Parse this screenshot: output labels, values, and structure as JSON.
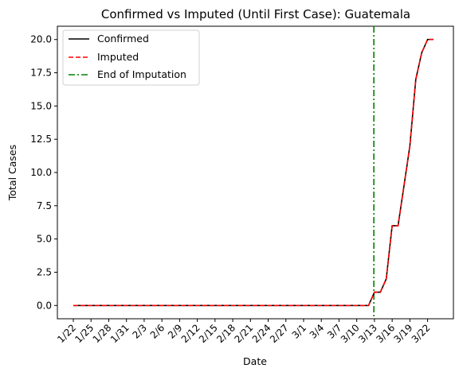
{
  "chart_data": {
    "type": "line",
    "title": "Confirmed vs Imputed (Until First Case): Guatemala",
    "xlabel": "Date",
    "ylabel": "Total Cases",
    "categories": [
      "1/22",
      "1/23",
      "1/24",
      "1/25",
      "1/26",
      "1/27",
      "1/28",
      "1/29",
      "1/30",
      "1/31",
      "2/1",
      "2/2",
      "2/3",
      "2/4",
      "2/5",
      "2/6",
      "2/7",
      "2/8",
      "2/9",
      "2/10",
      "2/11",
      "2/12",
      "2/13",
      "2/14",
      "2/15",
      "2/16",
      "2/17",
      "2/18",
      "2/19",
      "2/20",
      "2/21",
      "2/22",
      "2/23",
      "2/24",
      "2/25",
      "2/26",
      "2/27",
      "2/28",
      "2/29",
      "3/1",
      "3/2",
      "3/3",
      "3/4",
      "3/5",
      "3/6",
      "3/7",
      "3/8",
      "3/9",
      "3/10",
      "3/11",
      "3/12",
      "3/13",
      "3/14",
      "3/15",
      "3/16",
      "3/17",
      "3/18",
      "3/19",
      "3/20",
      "3/21",
      "3/22",
      "3/23"
    ],
    "xtick_labels": [
      "1/22",
      "1/25",
      "1/28",
      "1/31",
      "2/3",
      "2/6",
      "2/9",
      "2/12",
      "2/15",
      "2/18",
      "2/21",
      "2/24",
      "2/27",
      "3/1",
      "3/4",
      "3/7",
      "3/10",
      "3/13",
      "3/16",
      "3/19",
      "3/22"
    ],
    "series": [
      {
        "name": "Confirmed",
        "color": "#000000",
        "style": "solid",
        "values": [
          0,
          0,
          0,
          0,
          0,
          0,
          0,
          0,
          0,
          0,
          0,
          0,
          0,
          0,
          0,
          0,
          0,
          0,
          0,
          0,
          0,
          0,
          0,
          0,
          0,
          0,
          0,
          0,
          0,
          0,
          0,
          0,
          0,
          0,
          0,
          0,
          0,
          0,
          0,
          0,
          0,
          0,
          0,
          0,
          0,
          0,
          0,
          0,
          0,
          0,
          0,
          1,
          1,
          2,
          6,
          6,
          9,
          12,
          17,
          19,
          20,
          20
        ]
      },
      {
        "name": "Imputed",
        "color": "#ff0000",
        "style": "dashed",
        "values": [
          0,
          0,
          0,
          0,
          0,
          0,
          0,
          0,
          0,
          0,
          0,
          0,
          0,
          0,
          0,
          0,
          0,
          0,
          0,
          0,
          0,
          0,
          0,
          0,
          0,
          0,
          0,
          0,
          0,
          0,
          0,
          0,
          0,
          0,
          0,
          0,
          0,
          0,
          0,
          0,
          0,
          0,
          0,
          0,
          0,
          0,
          0,
          0,
          0,
          0,
          0,
          1,
          1,
          2,
          6,
          6,
          9,
          12,
          17,
          19,
          20,
          20
        ]
      }
    ],
    "vline": {
      "name": "End of Imputation",
      "x": 50.9,
      "color": "#008000",
      "style": "dashdot"
    },
    "ylim": [
      -1,
      21
    ],
    "yticks": [
      "0.0",
      "2.5",
      "5.0",
      "7.5",
      "10.0",
      "12.5",
      "15.0",
      "17.5",
      "20.0"
    ],
    "ytick_values": [
      0,
      2.5,
      5,
      7.5,
      10,
      12.5,
      15,
      17.5,
      20
    ],
    "grid": false,
    "legend_placement": "top-left"
  }
}
